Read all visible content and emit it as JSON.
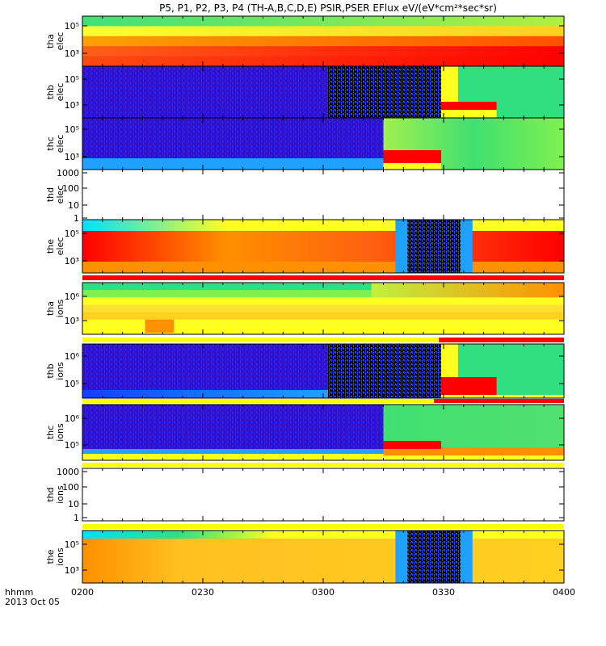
{
  "chart_data": {
    "type": "heatmap",
    "title": "P5, P1, P2, P3, P4 (TH-A,B,C,D,E) PSIR,PSER EFlux eV/(eV*cm²*sec*sr)",
    "x_axis": {
      "ticks": [
        "0200",
        "0230",
        "0300",
        "0330",
        "0400"
      ],
      "minor_ticks_per_major": 6,
      "range": [
        "0200",
        "0400"
      ],
      "label_line1": "hhmm",
      "label_line2": "2013 Oct 05"
    },
    "y_axis_scale": "log",
    "panels": [
      {
        "id": "tha-elec",
        "label1": "tha",
        "label2": "elec",
        "ticks": [
          "10⁵",
          "10³"
        ],
        "has_data": true,
        "bands": [
          [
            "#40e07a",
            "#b0f040"
          ],
          [
            "#ffff30",
            "#ffd020"
          ],
          [
            "#ffa000",
            "#ff5000"
          ],
          [
            "#ff6018",
            "#ff0000"
          ],
          [
            "#ff4a10",
            "#ff0000"
          ]
        ]
      },
      {
        "id": "thb-elec",
        "label1": "thb",
        "label2": "elec",
        "ticks": [
          "10⁵",
          "10³"
        ],
        "has_data": true
      },
      {
        "id": "thc-elec",
        "label1": "thc",
        "label2": "elec",
        "ticks": [
          "10⁵",
          "10³"
        ],
        "has_data": true
      },
      {
        "id": "thd-elec",
        "label1": "thd",
        "label2": "elec",
        "ticks": [
          "1000",
          "100",
          "10",
          "1"
        ],
        "has_data": false
      },
      {
        "id": "the-elec",
        "label1": "the",
        "label2": "elec",
        "ticks": [
          "10⁵",
          "10³"
        ],
        "has_data": true
      },
      {
        "id": "tha-ions",
        "label1": "tha",
        "label2": "ions",
        "ticks": [
          "10⁶",
          "10³"
        ],
        "has_data": true
      },
      {
        "id": "thb-ions",
        "label1": "thb",
        "label2": "ions",
        "ticks": [
          "10⁶",
          "10⁵"
        ],
        "has_data": true
      },
      {
        "id": "thc-ions",
        "label1": "thc",
        "label2": "ions",
        "ticks": [
          "10⁶",
          "10⁵"
        ],
        "has_data": true
      },
      {
        "id": "thd-ions",
        "label1": "thd",
        "label2": "ions",
        "ticks": [
          "1000",
          "100",
          "10",
          "1"
        ],
        "has_data": false
      },
      {
        "id": "the-ions",
        "label1": "the",
        "label2": "ions",
        "ticks": [
          "10⁵",
          "10³"
        ],
        "has_data": true
      }
    ],
    "colors": {
      "dark_blue": "#3010c8",
      "blue": "#1040ff",
      "light_blue": "#20a0ff",
      "cyan": "#00e0ff",
      "green": "#30e080",
      "yellow_green": "#b0f040",
      "yellow": "#ffff20",
      "orange": "#ff9000",
      "red": "#ff0000",
      "black": "#000000",
      "flag_red": "#ff0000",
      "flag_white": "#ffffff",
      "flag_yellow": "#ffff00"
    }
  }
}
